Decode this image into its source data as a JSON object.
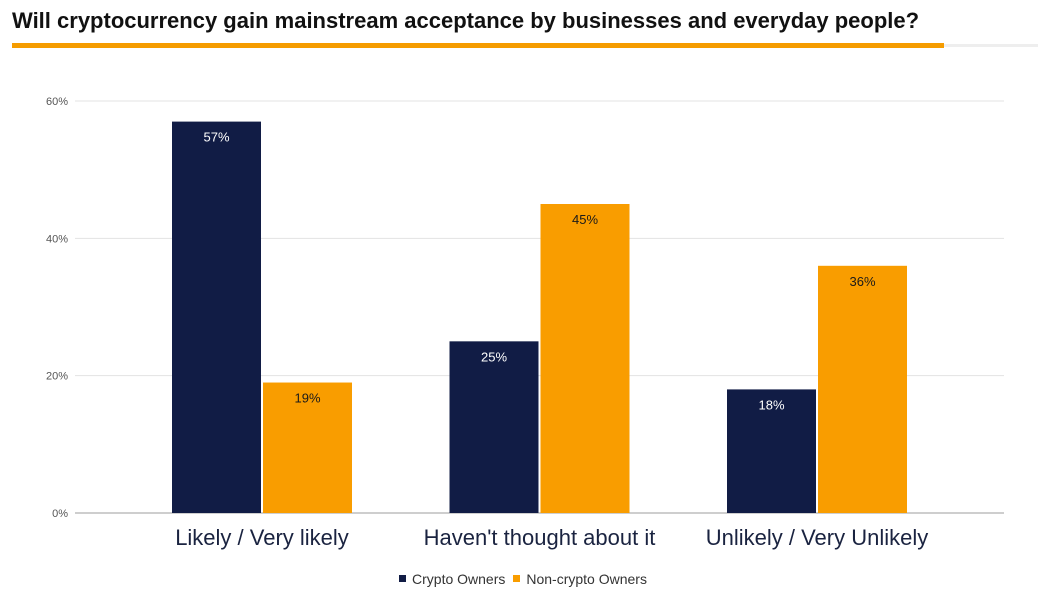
{
  "header": {
    "title": "Will cryptocurrency gain mainstream acceptance by businesses and everyday people?",
    "accent_color": "#f59c00"
  },
  "chart_data": {
    "type": "bar",
    "categories": [
      "Likely / Very likely",
      "Haven't thought about it",
      "Unlikely / Very Unlikely"
    ],
    "series": [
      {
        "name": "Crypto Owners",
        "values": [
          57,
          25,
          18
        ],
        "color": "#111c45",
        "label_color": "#ffffff"
      },
      {
        "name": "Non-crypto Owners",
        "values": [
          19,
          45,
          36
        ],
        "color": "#f99d00",
        "label_color": "#1a1a1a"
      }
    ],
    "value_suffix": "%",
    "ylim": [
      0,
      60
    ],
    "yticks": [
      0,
      20,
      40,
      60
    ],
    "ytick_labels": [
      "0%",
      "20%",
      "40%",
      "60%"
    ],
    "grid": true,
    "legend_position": "bottom",
    "title": "",
    "xlabel": "",
    "ylabel": ""
  }
}
